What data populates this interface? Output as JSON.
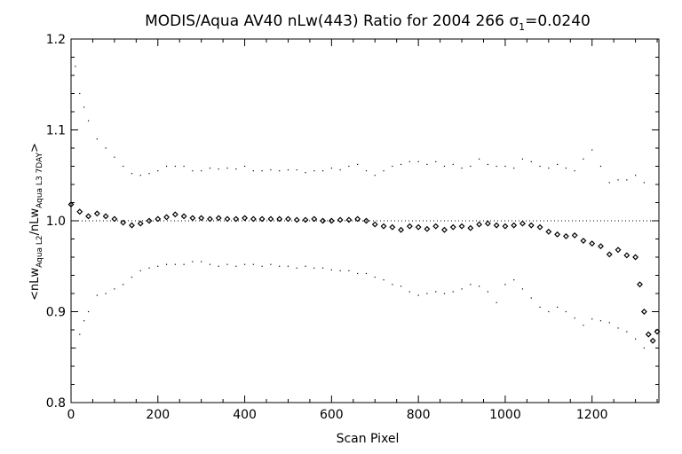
{
  "chart_data": {
    "type": "scatter",
    "title_prefix": "MODIS/Aqua AV40 nLw(443) Ratio for 2004 266 ",
    "title_sigma": "σ",
    "title_sigma_sub": "1",
    "title_suffix": "=0.0240",
    "xlabel": "Scan Pixel",
    "ylabel_parts": [
      "<nLw",
      "Aqua L2",
      "/nLw",
      "Aqua L3 7DAY",
      ">"
    ],
    "xlim": [
      0,
      1354
    ],
    "ylim": [
      0.8,
      1.2
    ],
    "x_ticks": [
      0,
      200,
      400,
      600,
      800,
      1000,
      1200
    ],
    "y_ticks": [
      0.8,
      0.9,
      1.0,
      1.1,
      1.2
    ],
    "x_tick_labels": [
      "0",
      "200",
      "400",
      "600",
      "800",
      "1000",
      "1200"
    ],
    "y_tick_labels": [
      "0.8",
      "0.9",
      "1.0",
      "1.1",
      "1.2"
    ],
    "reference_line": 1.0,
    "grid": false,
    "series": [
      {
        "role": "mean",
        "marker": "diamond",
        "x": [
          0,
          20,
          40,
          60,
          80,
          100,
          120,
          140,
          160,
          180,
          200,
          220,
          240,
          260,
          280,
          300,
          320,
          340,
          360,
          380,
          400,
          420,
          440,
          460,
          480,
          500,
          520,
          540,
          560,
          580,
          600,
          620,
          640,
          660,
          680,
          700,
          720,
          740,
          760,
          780,
          800,
          820,
          840,
          860,
          880,
          900,
          920,
          940,
          960,
          980,
          1000,
          1020,
          1040,
          1060,
          1080,
          1100,
          1120,
          1140,
          1160,
          1180,
          1200,
          1220,
          1240,
          1260,
          1280,
          1300,
          1310,
          1320,
          1330,
          1340,
          1350
        ],
        "y": [
          1.018,
          1.01,
          1.005,
          1.008,
          1.005,
          1.002,
          0.998,
          0.995,
          0.997,
          1.0,
          1.002,
          1.004,
          1.007,
          1.005,
          1.003,
          1.003,
          1.002,
          1.003,
          1.002,
          1.002,
          1.003,
          1.002,
          1.002,
          1.002,
          1.002,
          1.002,
          1.001,
          1.001,
          1.002,
          1.0,
          1.0,
          1.001,
          1.001,
          1.002,
          1.0,
          0.996,
          0.994,
          0.993,
          0.99,
          0.994,
          0.993,
          0.991,
          0.994,
          0.99,
          0.993,
          0.994,
          0.992,
          0.996,
          0.997,
          0.995,
          0.994,
          0.995,
          0.997,
          0.995,
          0.993,
          0.988,
          0.985,
          0.983,
          0.984,
          0.978,
          0.975,
          0.972,
          0.963,
          0.968,
          0.962,
          0.96,
          0.93,
          0.9,
          0.875,
          0.868,
          0.878
        ]
      },
      {
        "role": "upper-bound",
        "marker": "dot",
        "x": [
          10,
          20,
          30,
          40,
          60,
          80,
          100,
          120,
          140,
          160,
          180,
          200,
          220,
          240,
          260,
          280,
          300,
          320,
          340,
          360,
          380,
          400,
          420,
          440,
          460,
          480,
          500,
          520,
          540,
          560,
          580,
          600,
          620,
          640,
          660,
          680,
          700,
          720,
          740,
          760,
          780,
          800,
          820,
          840,
          860,
          880,
          900,
          920,
          940,
          960,
          980,
          1000,
          1020,
          1040,
          1060,
          1080,
          1100,
          1120,
          1140,
          1160,
          1180,
          1200,
          1220,
          1240,
          1260,
          1280,
          1300,
          1320
        ],
        "y": [
          1.17,
          1.14,
          1.125,
          1.11,
          1.09,
          1.08,
          1.07,
          1.06,
          1.052,
          1.05,
          1.052,
          1.055,
          1.06,
          1.06,
          1.06,
          1.055,
          1.055,
          1.058,
          1.057,
          1.058,
          1.057,
          1.06,
          1.055,
          1.055,
          1.056,
          1.055,
          1.056,
          1.056,
          1.053,
          1.055,
          1.055,
          1.058,
          1.056,
          1.06,
          1.062,
          1.055,
          1.05,
          1.055,
          1.06,
          1.062,
          1.065,
          1.065,
          1.062,
          1.065,
          1.06,
          1.062,
          1.058,
          1.06,
          1.068,
          1.062,
          1.06,
          1.06,
          1.058,
          1.068,
          1.065,
          1.06,
          1.058,
          1.062,
          1.058,
          1.055,
          1.068,
          1.078,
          1.06,
          1.042,
          1.045,
          1.045,
          1.05,
          1.042
        ]
      },
      {
        "role": "lower-bound",
        "marker": "dot",
        "x": [
          10,
          20,
          30,
          40,
          60,
          80,
          100,
          120,
          140,
          160,
          180,
          200,
          220,
          240,
          260,
          280,
          300,
          320,
          340,
          360,
          380,
          400,
          420,
          440,
          460,
          480,
          500,
          520,
          540,
          560,
          580,
          600,
          620,
          640,
          660,
          680,
          700,
          720,
          740,
          760,
          780,
          800,
          820,
          840,
          860,
          880,
          900,
          920,
          940,
          960,
          980,
          1000,
          1020,
          1040,
          1060,
          1080,
          1100,
          1120,
          1140,
          1160,
          1180,
          1200,
          1220,
          1240,
          1260,
          1280,
          1300,
          1320
        ],
        "y": [
          0.86,
          0.875,
          0.89,
          0.9,
          0.918,
          0.92,
          0.925,
          0.93,
          0.938,
          0.945,
          0.948,
          0.95,
          0.952,
          0.952,
          0.952,
          0.955,
          0.955,
          0.952,
          0.95,
          0.952,
          0.95,
          0.952,
          0.952,
          0.95,
          0.952,
          0.95,
          0.95,
          0.948,
          0.95,
          0.948,
          0.948,
          0.946,
          0.945,
          0.945,
          0.942,
          0.942,
          0.938,
          0.935,
          0.93,
          0.928,
          0.922,
          0.918,
          0.92,
          0.922,
          0.92,
          0.922,
          0.925,
          0.93,
          0.928,
          0.922,
          0.91,
          0.93,
          0.935,
          0.925,
          0.915,
          0.905,
          0.9,
          0.905,
          0.9,
          0.893,
          0.885,
          0.892,
          0.89,
          0.888,
          0.882,
          0.878,
          0.87,
          0.86
        ]
      }
    ]
  }
}
